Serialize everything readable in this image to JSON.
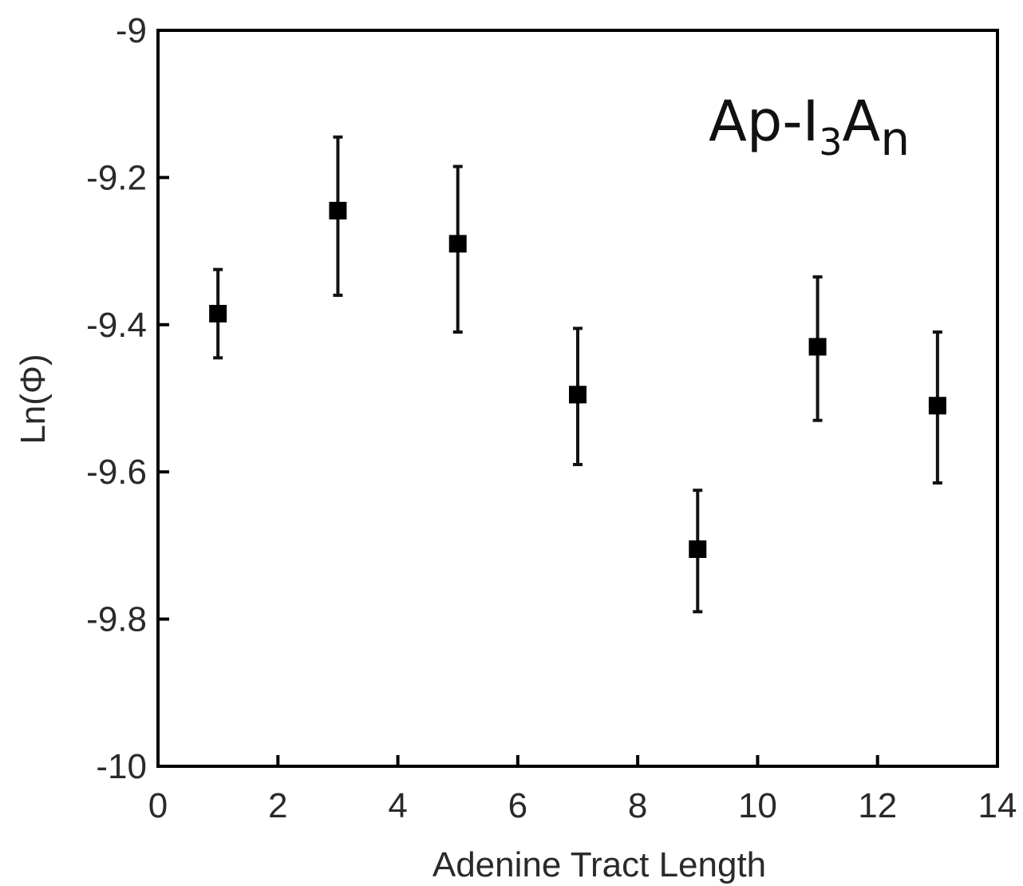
{
  "chart_data": {
    "type": "scatter",
    "xlabel": "Adenine Tract Length",
    "ylabel": "Ln(Φ)",
    "xlim": [
      0,
      14
    ],
    "ylim": [
      -10,
      -9
    ],
    "x_ticks": [
      "0",
      "2",
      "4",
      "6",
      "8",
      "10",
      "12",
      "14"
    ],
    "y_ticks": [
      "-9",
      "-9.2",
      "-9.4",
      "-9.6",
      "-9.8",
      "-10"
    ],
    "annotation": {
      "base": "Ap-I",
      "sub1": "3",
      "mid": "A",
      "sub2": "n"
    },
    "grid": false,
    "legend": "none",
    "series": [
      {
        "x": [
          1,
          3,
          5,
          7,
          9,
          11,
          13
        ],
        "y": [
          -9.385,
          -9.245,
          -9.29,
          -9.495,
          -9.705,
          -9.43,
          -9.51
        ],
        "err_low": [
          -9.445,
          -9.36,
          -9.41,
          -9.59,
          -9.79,
          -9.53,
          -9.615
        ],
        "err_high": [
          -9.325,
          -9.145,
          -9.185,
          -9.405,
          -9.625,
          -9.335,
          -9.41
        ]
      }
    ]
  }
}
